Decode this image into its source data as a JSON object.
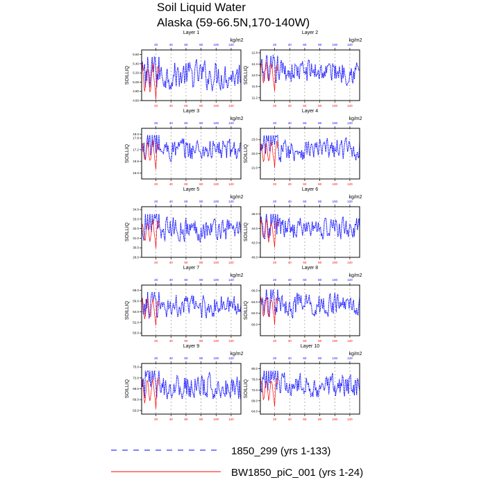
{
  "title": "Soil Liquid Water",
  "subtitle": "Alaska (59-66.5N,170-140W)",
  "colors": {
    "series_a": "#0000ff",
    "series_b": "#ff0000",
    "axis": "#000000",
    "grid": "#808080"
  },
  "legend": [
    {
      "label": "1850_299 (yrs 1-133)",
      "style": "dashed",
      "color": "#0000ff"
    },
    {
      "label": "BW1850_piC_001 (yrs 1-24)",
      "style": "solid",
      "color": "#ff0000"
    }
  ],
  "chart_data": [
    {
      "type": "line",
      "title": "Layer 1",
      "ylabel": "SOILLIQ",
      "top_axis_unit": "kg/m2",
      "ylim": [
        4.6,
        5.7
      ],
      "yticks": [
        "4.60",
        "4.80",
        "5.00",
        "5.20",
        "5.40",
        "5.60"
      ],
      "xlim_top": [
        1,
        133
      ],
      "xticks_top": [
        20,
        40,
        60,
        80,
        100,
        120
      ],
      "xlim_bottom": [
        1,
        133
      ],
      "xticks_bottom": [
        20,
        40,
        60,
        80,
        100,
        120
      ],
      "y_mean": 5.15,
      "y_amp": 0.22
    },
    {
      "type": "line",
      "title": "Layer 2",
      "ylabel": "SOILLIQ",
      "top_axis_unit": "kg/m2",
      "ylim": [
        11.1,
        12.9
      ],
      "yticks": [
        "11.2",
        "11.6",
        "12.0",
        "12.4",
        "12.8"
      ],
      "xlim_top": [
        1,
        133
      ],
      "xticks_top": [
        20,
        40,
        60,
        80,
        100,
        120
      ],
      "xlim_bottom": [
        1,
        133
      ],
      "xticks_bottom": [
        20,
        40,
        60,
        80,
        100,
        120
      ],
      "y_mean": 12.15,
      "y_amp": 0.3
    },
    {
      "type": "line",
      "title": "Layer 3",
      "ylabel": "SOILLIQ",
      "top_axis_unit": "kg/m2",
      "ylim": [
        15.7,
        18.3
      ],
      "yticks": [
        "16.0",
        "16.6",
        "17.2",
        "17.8",
        "18.0"
      ],
      "xlim_top": [
        1,
        133
      ],
      "xticks_top": [
        20,
        40,
        60,
        80,
        100,
        120
      ],
      "xlim_bottom": [
        1,
        133
      ],
      "xticks_bottom": [
        20,
        40,
        60,
        80,
        100,
        120
      ],
      "y_mean": 17.2,
      "y_amp": 0.42
    },
    {
      "type": "line",
      "title": "Layer 4",
      "ylabel": "SOILLIQ",
      "top_axis_unit": "kg/m2",
      "ylim": [
        20.2,
        23.8
      ],
      "yticks": [
        "21.0",
        "22.0",
        "23.0"
      ],
      "xlim_top": [
        1,
        133
      ],
      "xticks_top": [
        20,
        40,
        60,
        80,
        100,
        120
      ],
      "xlim_bottom": [
        1,
        133
      ],
      "xticks_bottom": [
        20,
        40,
        60,
        80,
        100,
        120
      ],
      "y_mean": 22.3,
      "y_amp": 0.55
    },
    {
      "type": "line",
      "title": "Layer 5",
      "ylabel": "SOILLIQ",
      "top_axis_unit": "kg/m2",
      "ylim": [
        29.0,
        34.3
      ],
      "yticks": [
        "29.0",
        "30.0",
        "31.0",
        "32.0",
        "33.0",
        "34.0"
      ],
      "xlim_top": [
        1,
        133
      ],
      "xticks_top": [
        20,
        40,
        60,
        80,
        100,
        120
      ],
      "xlim_bottom": [
        1,
        133
      ],
      "xticks_bottom": [
        20,
        40,
        60,
        80,
        100,
        120
      ],
      "y_mean": 32.0,
      "y_amp": 0.85
    },
    {
      "type": "line",
      "title": "Layer 6",
      "ylabel": "SOILLIQ",
      "top_axis_unit": "kg/m2",
      "ylim": [
        40.0,
        47.0
      ],
      "yticks": [
        "40.0",
        "42.0",
        "44.0",
        "46.0"
      ],
      "xlim_top": [
        1,
        133
      ],
      "xticks_top": [
        20,
        40,
        60,
        80,
        100,
        120
      ],
      "xlim_bottom": [
        1,
        133
      ],
      "xticks_bottom": [
        20,
        40,
        60,
        80,
        100,
        120
      ],
      "y_mean": 44.0,
      "y_amp": 1.1
    },
    {
      "type": "line",
      "title": "Layer 7",
      "ylabel": "SOILLIQ",
      "top_axis_unit": "kg/m2",
      "ylim": [
        49.5,
        59.0
      ],
      "yticks": [
        "50.0",
        "52.0",
        "54.0",
        "56.0",
        "58.0"
      ],
      "xlim_top": [
        1,
        133
      ],
      "xticks_top": [
        20,
        40,
        60,
        80,
        100,
        120
      ],
      "xlim_bottom": [
        1,
        133
      ],
      "xticks_bottom": [
        20,
        40,
        60,
        80,
        100,
        120
      ],
      "y_mean": 55.0,
      "y_amp": 1.5
    },
    {
      "type": "line",
      "title": "Layer 8",
      "ylabel": "SOILLIQ",
      "top_axis_unit": "kg/m2",
      "ylim": [
        58.0,
        67.0
      ],
      "yticks": [
        "60.0",
        "62.0",
        "64.0",
        "66.0"
      ],
      "xlim_top": [
        1,
        133
      ],
      "xticks_top": [
        20,
        40,
        60,
        80,
        100,
        120
      ],
      "xlim_bottom": [
        1,
        133
      ],
      "xticks_bottom": [
        20,
        40,
        60,
        80,
        100,
        120
      ],
      "y_mean": 63.5,
      "y_amp": 1.5
    },
    {
      "type": "line",
      "title": "Layer 9",
      "ylabel": "SOILLIQ",
      "top_axis_unit": "kg/m2",
      "ylim": [
        62.0,
        76.0
      ],
      "yticks": [
        "63.0",
        "66.0",
        "69.0",
        "72.0",
        "75.0"
      ],
      "xlim_top": [
        1,
        133
      ],
      "xticks_top": [
        20,
        40,
        60,
        80,
        100,
        120
      ],
      "xlim_bottom": [
        1,
        133
      ],
      "xticks_bottom": [
        20,
        40,
        60,
        80,
        100,
        120
      ],
      "y_mean": 69.5,
      "y_amp": 2.5
    },
    {
      "type": "line",
      "title": "Layer 10",
      "ylabel": "SOILLIQ",
      "top_axis_unit": "kg/m2",
      "ylim": [
        63.0,
        82.0
      ],
      "yticks": [
        "64.0",
        "68.0",
        "72.0",
        "76.0",
        "80.0"
      ],
      "xlim_top": [
        1,
        133
      ],
      "xticks_top": [
        20,
        40,
        60,
        80,
        100,
        120
      ],
      "xlim_bottom": [
        1,
        133
      ],
      "xticks_bottom": [
        20,
        40,
        60,
        80,
        100,
        120
      ],
      "y_mean": 73.5,
      "y_amp": 3.2
    }
  ]
}
